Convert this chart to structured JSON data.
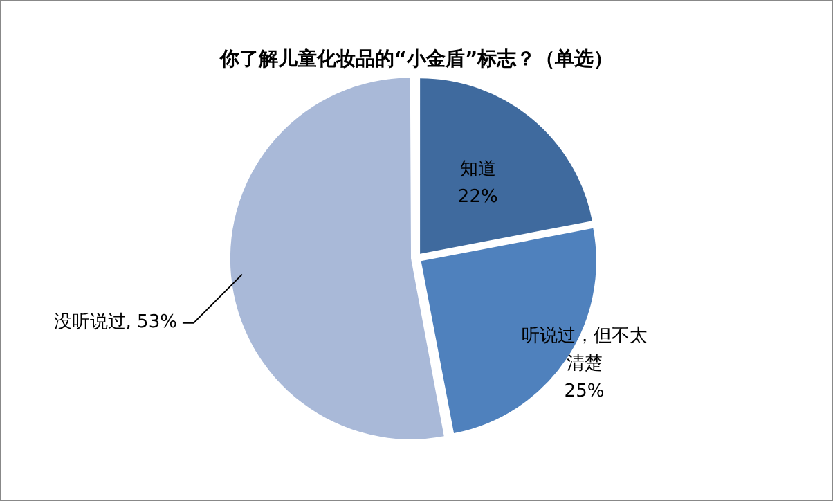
{
  "chart_data": {
    "type": "pie",
    "title": "你了解儿童化妆品的“小金盾”标志？（单选）",
    "categories": [
      "知道",
      "听说过，但不太清楚",
      "没听说过"
    ],
    "values": [
      22,
      25,
      53
    ],
    "colors": [
      "#3f6a9e",
      "#4f81bd",
      "#a9b9d8"
    ],
    "value_labels": [
      "22%",
      "25%",
      "53%"
    ],
    "legend": false
  }
}
